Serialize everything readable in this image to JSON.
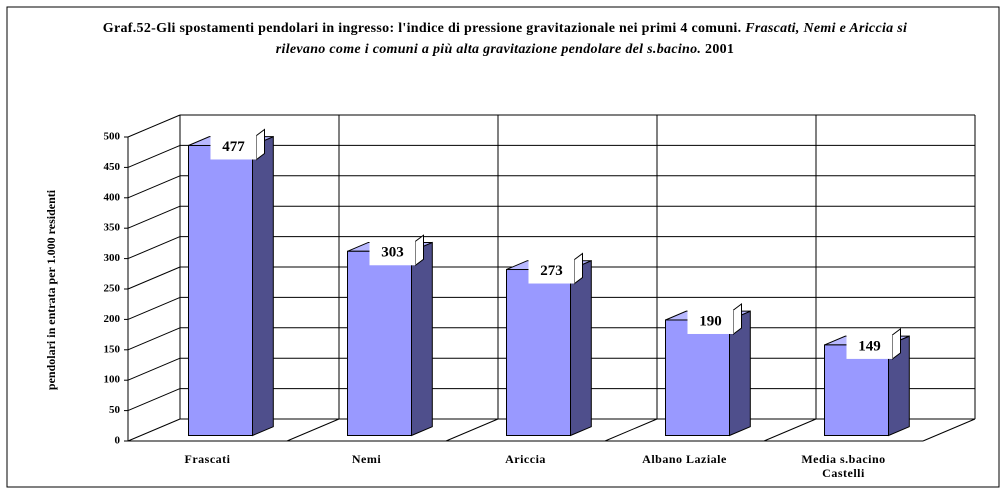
{
  "chart_data": {
    "type": "bar3d",
    "title": "Graf.52-Gli spostamenti pendolari in ingresso: l'indice di pressione gravitazionale nei primi 4 comuni.",
    "subtitle": "Frascati, Nemi e Ariccia si rilevano come i comuni a più alta gravitazione pendolare del s.bacino.",
    "date": "2001",
    "y_label": "pendolari in entrata per 1.000 residenti",
    "categories": [
      "Frascati",
      "Nemi",
      "Ariccia",
      "Albano Laziale",
      "Media s.bacino Castelli"
    ],
    "values": [
      477,
      303,
      273,
      190,
      149
    ],
    "color": "#9999ff",
    "side_color": "#4f4f8c",
    "top_color": "#b8b8ff",
    "ylim": [
      0,
      500
    ],
    "yticks": [
      0,
      50,
      100,
      150,
      200,
      250,
      300,
      350,
      400,
      450,
      500
    ],
    "grid": true
  }
}
